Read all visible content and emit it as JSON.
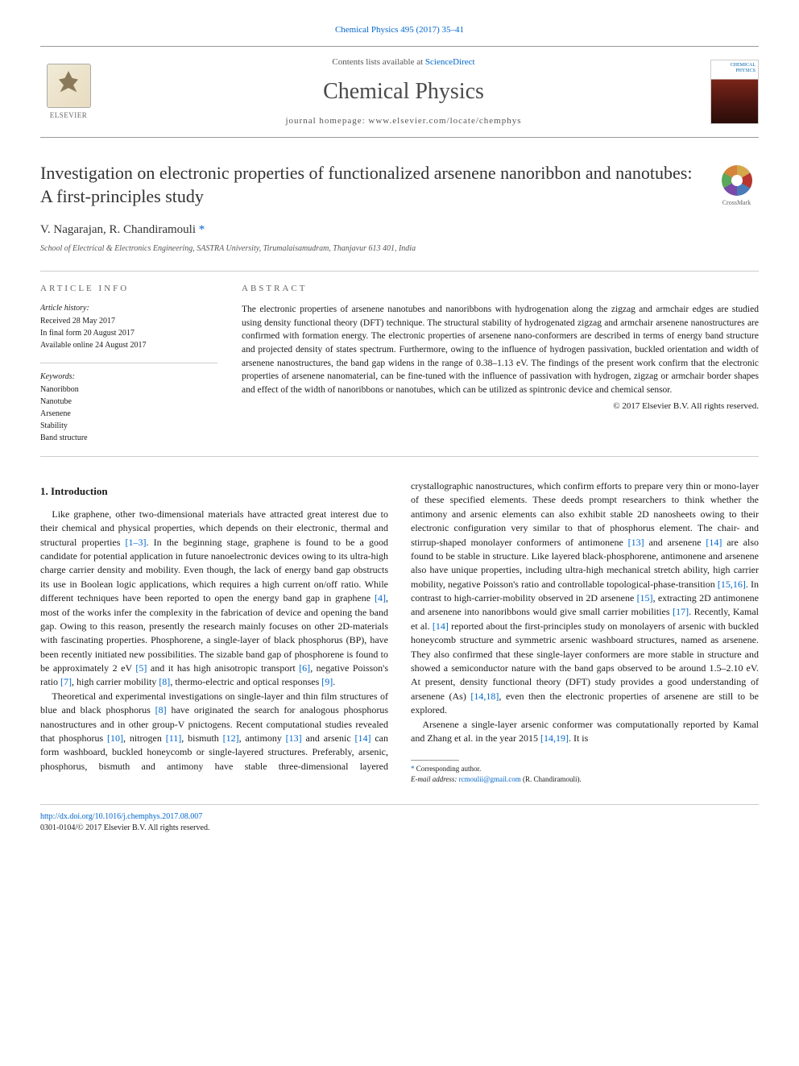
{
  "citation": {
    "journal_link": "Chemical Physics 495 (2017) 35–41"
  },
  "header": {
    "contents_prefix": "Contents lists available at ",
    "contents_link": "ScienceDirect",
    "journal_name": "Chemical Physics",
    "homepage_prefix": "journal homepage: ",
    "homepage_url": "www.elsevier.com/locate/chemphys",
    "publisher": "ELSEVIER",
    "cover_title": "CHEMICAL PHYSICS"
  },
  "crossmark_label": "CrossMark",
  "title": "Investigation on electronic properties of functionalized arsenene nanoribbon and nanotubes: A first-principles study",
  "authors": {
    "names": "V. Nagarajan, R. Chandiramouli",
    "corresp_marker": " *"
  },
  "affiliation": "School of Electrical & Electronics Engineering, SASTRA University, Tirumalaisamudram, Thanjavur 613 401, India",
  "article_info": {
    "heading": "article info",
    "history_label": "Article history:",
    "history": [
      "Received 28 May 2017",
      "In final form 20 August 2017",
      "Available online 24 August 2017"
    ],
    "keywords_label": "Keywords:",
    "keywords": [
      "Nanoribbon",
      "Nanotube",
      "Arsenene",
      "Stability",
      "Band structure"
    ]
  },
  "abstract": {
    "heading": "abstract",
    "text": "The electronic properties of arsenene nanotubes and nanoribbons with hydrogenation along the zigzag and armchair edges are studied using density functional theory (DFT) technique. The structural stability of hydrogenated zigzag and armchair arsenene nanostructures are confirmed with formation energy. The electronic properties of arsenene nano-conformers are described in terms of energy band structure and projected density of states spectrum. Furthermore, owing to the influence of hydrogen passivation, buckled orientation and width of arsenene nanostructures, the band gap widens in the range of 0.38–1.13 eV. The findings of the present work confirm that the electronic properties of arsenene nanomaterial, can be fine-tuned with the influence of passivation with hydrogen, zigzag or armchair border shapes and effect of the width of nanoribbons or nanotubes, which can be utilized as spintronic device and chemical sensor.",
    "copyright": "© 2017 Elsevier B.V. All rights reserved."
  },
  "body": {
    "section_heading": "1. Introduction",
    "para1_a": "Like graphene, other two-dimensional materials have attracted great interest due to their chemical and physical properties, which depends on their electronic, thermal and structural properties ",
    "ref1": "[1–3]",
    "para1_b": ". In the beginning stage, graphene is found to be a good candidate for potential application in future nanoelectronic devices owing to its ultra-high charge carrier density and mobility. Even though, the lack of energy band gap obstructs its use in Boolean logic applications, which requires a high current on/off ratio. While different techniques have been reported to open the energy band gap in graphene ",
    "ref2": "[4]",
    "para1_c": ", most of the works infer the complexity in the fabrication of device and opening the band gap. Owing to this reason, presently the research mainly focuses on other 2D-materials with fascinating properties. Phosphorene, a single-layer of black phosphorus (BP), have been recently initiated new possibilities. The sizable band gap of phosphorene is found to be approximately 2 eV ",
    "ref3": "[5]",
    "para1_d": " and it has high anisotropic transport ",
    "ref4": "[6]",
    "para1_e": ", negative Poisson's ratio ",
    "ref5": "[7]",
    "para1_f": ", high carrier mobility ",
    "ref6": "[8]",
    "para1_g": ", thermo-electric and optical responses ",
    "ref7": "[9]",
    "para1_h": ".",
    "para2_a": "Theoretical and experimental investigations on single-layer and thin film structures of blue and black phosphorus ",
    "ref8": "[8]",
    "para2_b": " have originated the search for analogous phosphorus nanostructures and in other group-V pnictogens. Recent computational studies revealed that phosphorus ",
    "ref9": "[10]",
    "para2_c": ", nitrogen ",
    "ref10": "[11]",
    "para2_d": ", bismuth ",
    "ref11": "[12]",
    "para2_e": ", antimony ",
    "ref12": "[13]",
    "para2_f": " and arsenic ",
    "ref13": "[14]",
    "para2_g": " can form washboard, buckled honeycomb or single-layered structures. Preferably, arsenic, phosphorus, bismuth and antimony have stable three-dimensional layered crystallographic nanostructures, which confirm efforts to prepare very thin or mono-layer of these specified elements. These deeds prompt researchers to think whether the antimony and arsenic elements can also exhibit stable 2D nanosheets owing to their electronic configuration very similar to that of phosphorus element. The chair- and stirrup-shaped monolayer conformers of antimonene ",
    "ref14": "[13]",
    "para2_h": " and arsenene ",
    "ref15": "[14]",
    "para2_i": " are also found to be stable in structure. Like layered black-phosphorene, antimonene and arsenene also have unique properties, including ultra-high mechanical stretch ability, high carrier mobility, negative Poisson's ratio and controllable topological-phase-transition ",
    "ref16": "[15,16]",
    "para2_j": ". In contrast to high-carrier-mobility observed in 2D arsenene ",
    "ref17": "[15]",
    "para2_k": ", extracting 2D antimonene and arsenene into nanoribbons would give small carrier mobilities ",
    "ref18": "[17]",
    "para2_l": ". Recently, Kamal et al. ",
    "ref19": "[14]",
    "para2_m": " reported about the first-principles study on monolayers of arsenic with buckled honeycomb structure and symmetric arsenic washboard structures, named as arsenene. They also confirmed that these single-layer conformers are more stable in structure and showed a semiconductor nature with the band gaps observed to be around 1.5–2.10 eV. At present, density functional theory (DFT) study provides a good understanding of arsenene (As) ",
    "ref20": "[14,18]",
    "para2_n": ", even then the electronic properties of arsenene are still to be explored.",
    "para3_a": "Arsenene a single-layer arsenic conformer was computationally reported by Kamal and Zhang et al. in the year 2015 ",
    "ref21": "[14,19]",
    "para3_b": ". It is"
  },
  "corresp": {
    "label": "Corresponding author.",
    "email_label": "E-mail address: ",
    "email": "rcmoulii@gmail.com",
    "email_suffix": " (R. Chandiramouli)."
  },
  "footer": {
    "doi_url": "http://dx.doi.org/10.1016/j.chemphys.2017.08.007",
    "issn_line": "0301-0104/© 2017 Elsevier B.V. All rights reserved."
  },
  "colors": {
    "link": "#0066cc",
    "text": "#1a1a1a",
    "muted": "#666666",
    "border": "#cccccc"
  }
}
